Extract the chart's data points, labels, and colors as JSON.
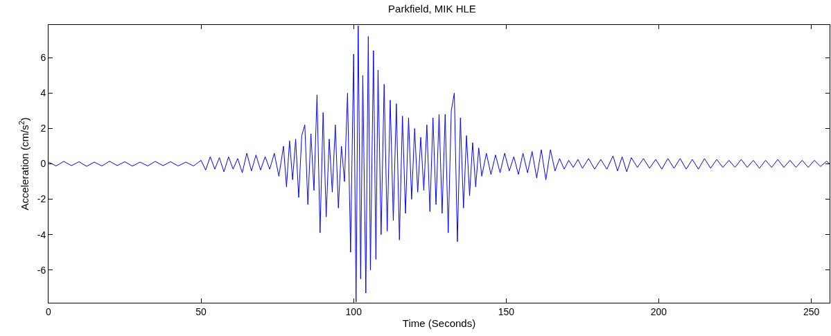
{
  "chart_data": {
    "type": "line",
    "title": "Parkfield, MIK HLE",
    "xlabel": "Time (Seconds)",
    "ylabel": "Acceleration (cm/s$^{2}$)",
    "xlim": [
      0,
      256
    ],
    "ylim": [
      -7.85,
      7.85
    ],
    "xticks": [
      0,
      50,
      100,
      150,
      200,
      250
    ],
    "yticks": [
      -6,
      -4,
      -2,
      0,
      2,
      4,
      6
    ],
    "marker": "none",
    "line_style": "solid",
    "series": [
      {
        "color": "#0000ff",
        "x": [
          0,
          2.5,
          5,
          7.5,
          10,
          12.5,
          15,
          17.5,
          20,
          22.5,
          25,
          27.5,
          30,
          32.5,
          35,
          37.5,
          40,
          42.5,
          45,
          47.5,
          50,
          51.5,
          53,
          54.5,
          56,
          57.5,
          59,
          60.5,
          62,
          63.5,
          65,
          66.5,
          68,
          69.5,
          71,
          72.5,
          74,
          75.5,
          77,
          78,
          79,
          80,
          81,
          82,
          83,
          84,
          85,
          86,
          87,
          88,
          89,
          90,
          91,
          92,
          93,
          94,
          95,
          96,
          97,
          98,
          99,
          100,
          100.8,
          101.5,
          102.3,
          103,
          104,
          104.8,
          105.5,
          106.5,
          107.3,
          108,
          109,
          110,
          111,
          112,
          113,
          114,
          115,
          116,
          117,
          118,
          119,
          120,
          121,
          122,
          123,
          124,
          125,
          126,
          127,
          128,
          129,
          130,
          131,
          132,
          133,
          134,
          135,
          136,
          137,
          138,
          139,
          140,
          141,
          142,
          143.5,
          145,
          146.5,
          148,
          149.5,
          151,
          152.5,
          154,
          155.5,
          157,
          158.5,
          160,
          161.5,
          163,
          164.5,
          166,
          167.5,
          169,
          170.5,
          172,
          173.5,
          175,
          177,
          179,
          181,
          183,
          185,
          186.5,
          188,
          189.5,
          191,
          193,
          195,
          197,
          199,
          201,
          203,
          205,
          207,
          209,
          211,
          213,
          215,
          217,
          219,
          221,
          223,
          225,
          227,
          229,
          231,
          233,
          235,
          237,
          239,
          241,
          243,
          245,
          247,
          249,
          251,
          253,
          255,
          256
        ],
        "values": [
          0.1,
          -0.12,
          0.14,
          -0.1,
          0.12,
          -0.14,
          0.1,
          -0.12,
          0.15,
          -0.1,
          0.12,
          -0.13,
          0.1,
          -0.12,
          0.14,
          -0.1,
          0.12,
          -0.12,
          0.1,
          -0.12,
          0.2,
          -0.35,
          0.4,
          -0.3,
          0.35,
          -0.45,
          0.4,
          -0.3,
          0.3,
          -0.5,
          0.6,
          -0.4,
          0.5,
          -0.35,
          0.4,
          -0.3,
          0.6,
          -0.7,
          1.0,
          -1.3,
          1.3,
          -0.9,
          1.4,
          -1.9,
          1.6,
          2.2,
          -2.3,
          1.7,
          -1.5,
          3.9,
          -3.9,
          2.9,
          -3.0,
          1.4,
          -1.6,
          2.2,
          -2.5,
          1.0,
          -1.0,
          4.0,
          -5.0,
          6.2,
          -7.8,
          7.8,
          -6.5,
          5.0,
          -7.3,
          7.2,
          -6.0,
          6.4,
          -5.4,
          5.3,
          -4.0,
          4.5,
          -3.8,
          3.6,
          -3.2,
          3.4,
          -4.3,
          2.7,
          -2.8,
          2.6,
          -2.0,
          2.0,
          -1.6,
          1.5,
          -1.5,
          2.2,
          -2.7,
          2.6,
          -2.3,
          2.8,
          -2.8,
          2.8,
          -3.9,
          3.0,
          4.0,
          -4.4,
          2.6,
          -2.5,
          1.6,
          -1.8,
          1.2,
          -1.3,
          0.9,
          -0.7,
          0.6,
          -0.6,
          0.5,
          -0.5,
          0.6,
          -0.4,
          0.4,
          -0.6,
          0.6,
          -0.5,
          0.7,
          -0.8,
          0.8,
          -0.9,
          0.8,
          -0.4,
          0.3,
          -0.3,
          0.2,
          -0.2,
          0.25,
          -0.25,
          0.3,
          -0.3,
          0.25,
          -0.3,
          0.45,
          -0.4,
          0.4,
          -0.45,
          0.35,
          -0.2,
          0.3,
          -0.25,
          0.25,
          -0.3,
          0.3,
          -0.25,
          0.3,
          -0.3,
          0.25,
          -0.3,
          0.3,
          -0.25,
          0.25,
          -0.2,
          0.2,
          -0.2,
          0.25,
          -0.2,
          0.2,
          -0.25,
          0.2,
          -0.2,
          0.25,
          -0.2,
          0.2,
          -0.2,
          0.2,
          -0.2,
          0.2,
          -0.15,
          0.15,
          0
        ]
      }
    ]
  }
}
